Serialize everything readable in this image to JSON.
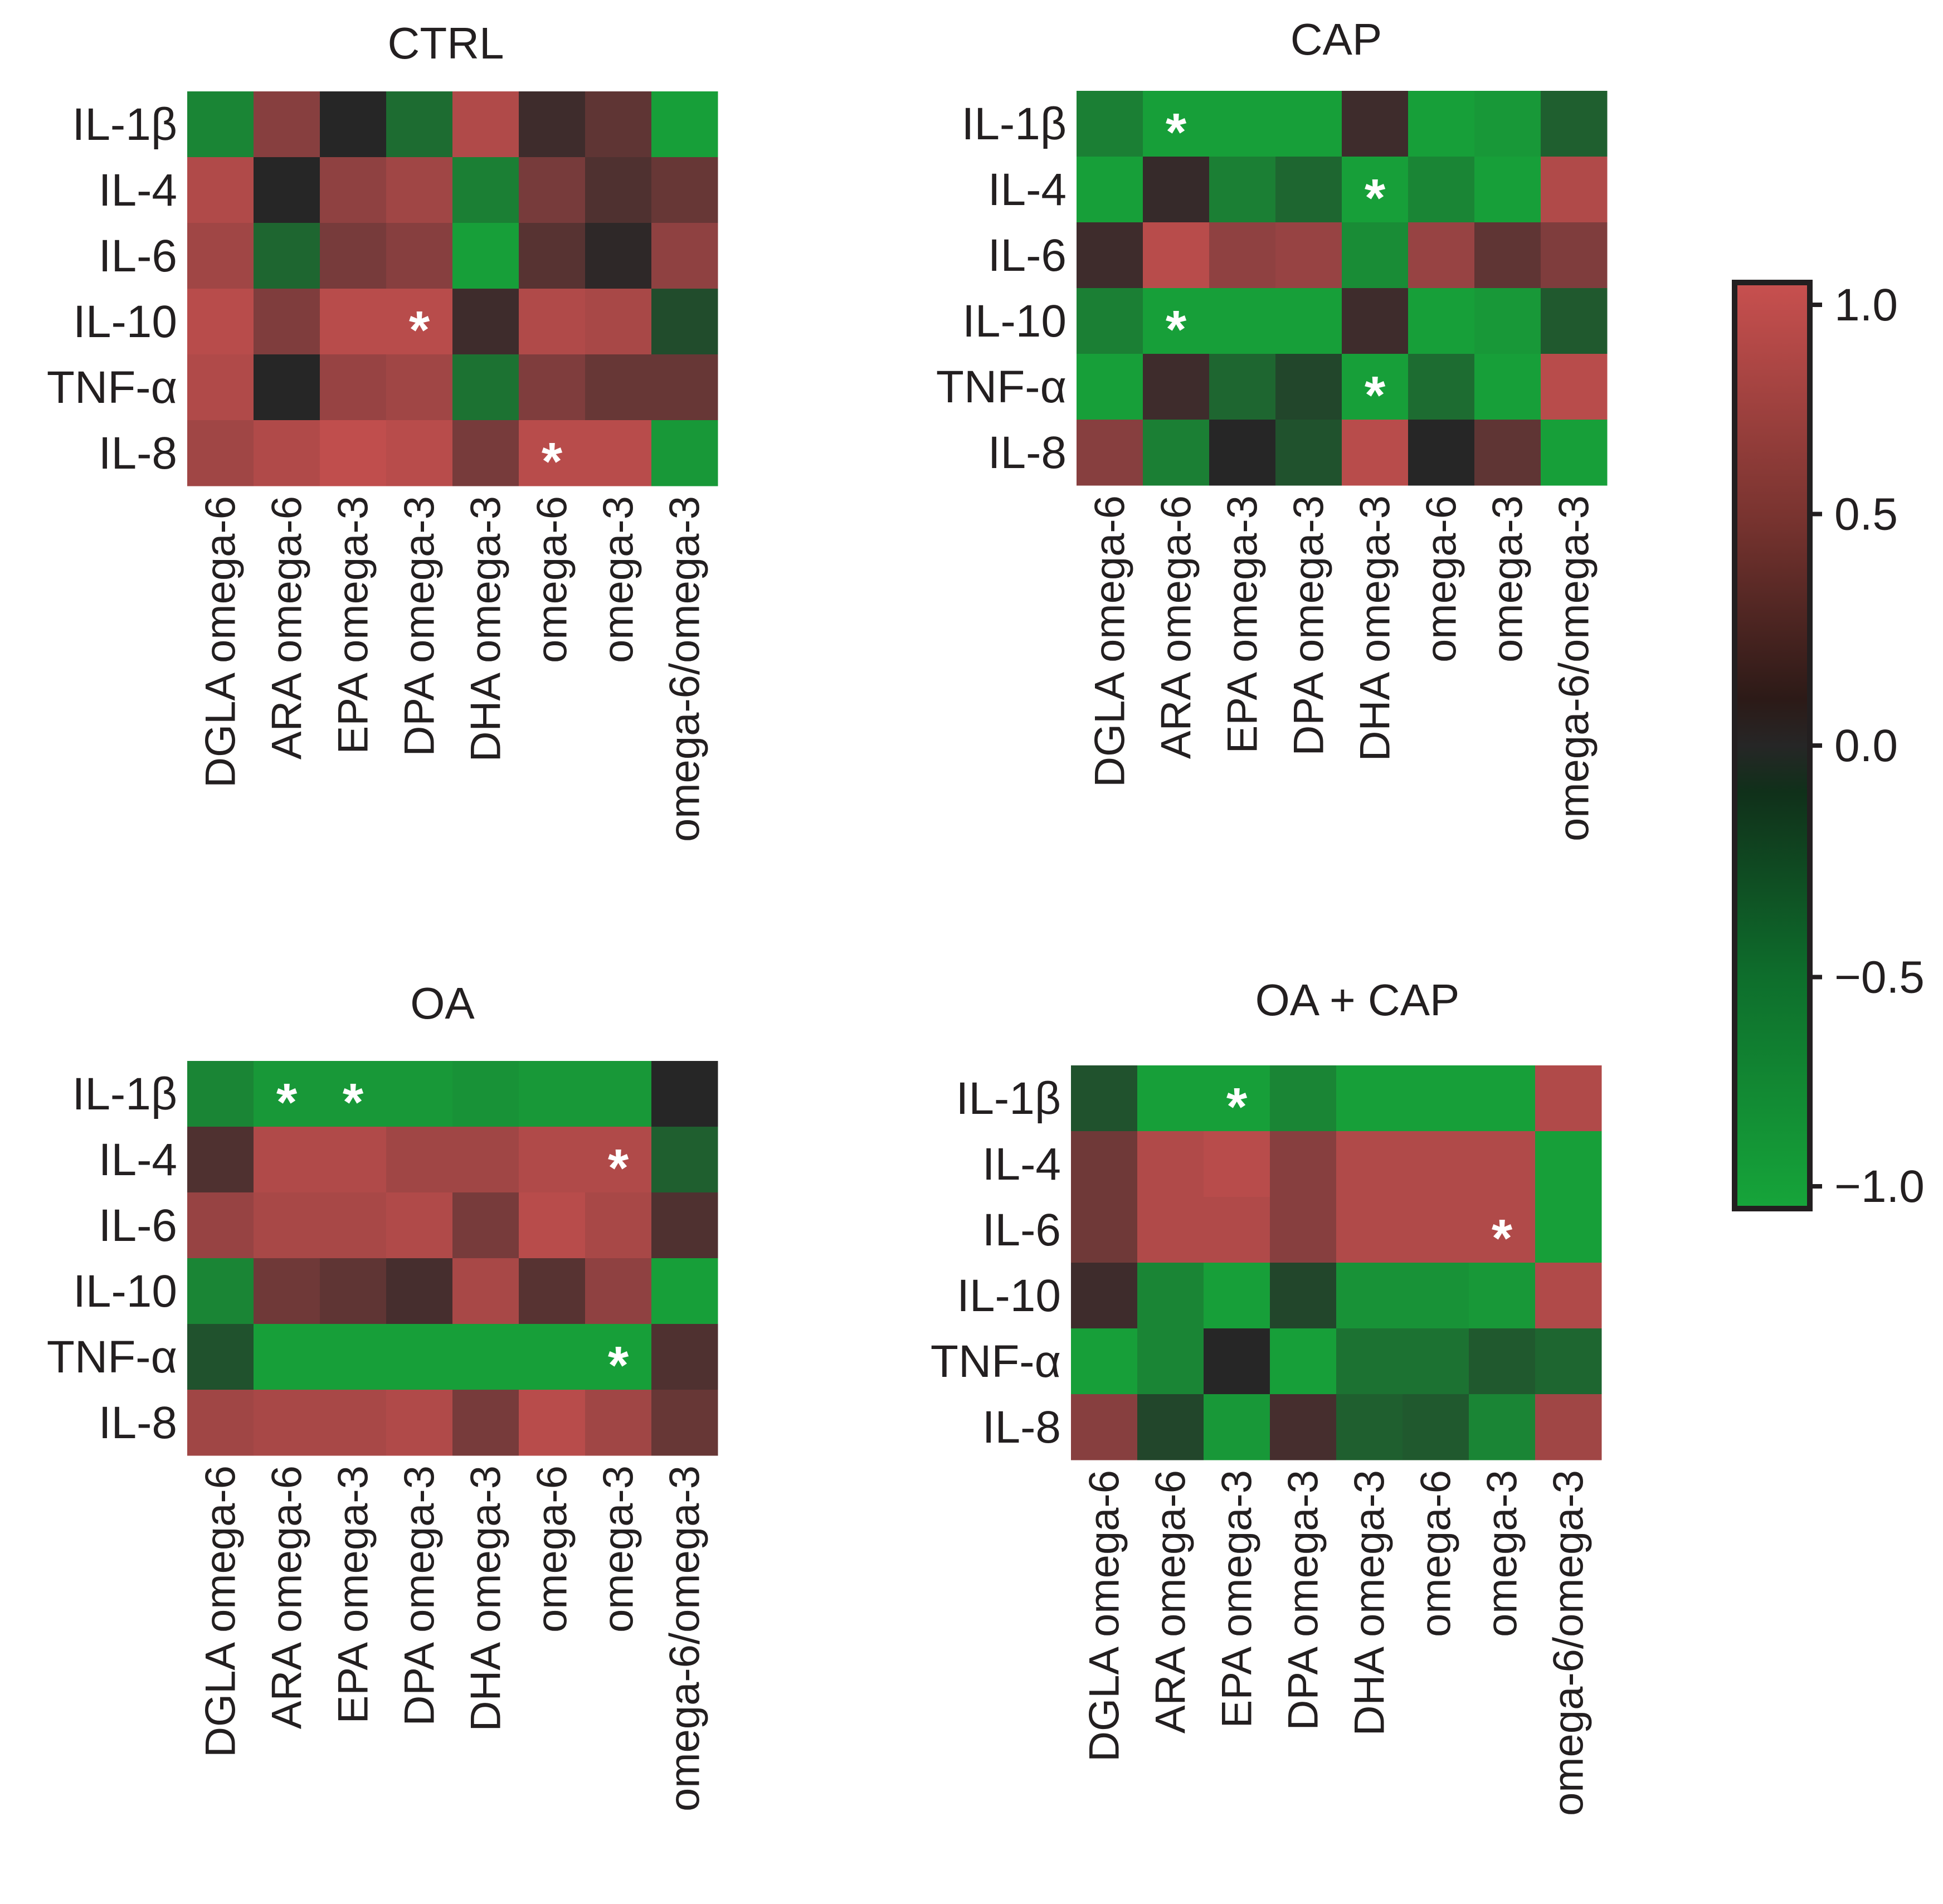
{
  "chart_data": {
    "type": "heatmap",
    "row_labels": [
      "IL-1β",
      "IL-4",
      "IL-6",
      "IL-10",
      "TNF-α",
      "IL-8"
    ],
    "column_labels": [
      "DGLA omega-6",
      "ARA omega-6",
      "EPA omega-3",
      "DPA omega-3",
      "DHA omega-3",
      "omega-6",
      "omega-3",
      "omega-6/omega-3"
    ],
    "colors": {
      "positive": "#c8504f",
      "zero": "#262626",
      "negative": "#16a53a",
      "star": "#ffffff",
      "text": "#231f20"
    },
    "colorbar": {
      "range": [
        -1.0,
        1.0
      ],
      "ticks": [
        1.0,
        0.5,
        0.0,
        -0.5,
        -1.0
      ],
      "tick_labels": [
        "1.0",
        "0.5",
        "0.0",
        "−0.5",
        "−1.0"
      ]
    },
    "panels": [
      {
        "title": "CTRL",
        "values": [
          [
            -0.75,
            0.6,
            0.0,
            -0.55,
            0.85,
            0.15,
            0.35,
            -0.95
          ],
          [
            0.85,
            0.0,
            0.65,
            0.75,
            -0.7,
            0.5,
            0.25,
            0.4
          ],
          [
            0.75,
            -0.5,
            0.5,
            0.6,
            -0.95,
            0.3,
            0.05,
            0.65
          ],
          [
            0.9,
            0.55,
            0.9,
            0.9,
            0.15,
            0.85,
            0.8,
            -0.3
          ],
          [
            0.85,
            0.0,
            0.7,
            0.75,
            -0.6,
            0.55,
            0.4,
            0.4
          ],
          [
            0.75,
            0.85,
            0.95,
            0.9,
            0.5,
            0.9,
            0.9,
            -0.9
          ]
        ],
        "stars": [
          {
            "row": 3,
            "col": 3
          },
          {
            "row": 5,
            "col": 5
          }
        ]
      },
      {
        "title": "CAP",
        "values": [
          [
            -0.7,
            -0.95,
            -0.95,
            -0.95,
            0.15,
            -0.95,
            -0.9,
            -0.45
          ],
          [
            -0.95,
            0.1,
            -0.7,
            -0.5,
            -0.95,
            -0.75,
            -0.95,
            0.85
          ],
          [
            0.15,
            0.9,
            0.65,
            0.7,
            -0.8,
            0.7,
            0.35,
            0.55
          ],
          [
            -0.7,
            -0.95,
            -0.95,
            -0.95,
            0.15,
            -0.95,
            -0.9,
            -0.4
          ],
          [
            -0.95,
            0.15,
            -0.5,
            -0.25,
            -0.95,
            -0.55,
            -0.95,
            0.9
          ],
          [
            0.6,
            -0.7,
            0.0,
            -0.35,
            0.9,
            0.0,
            0.35,
            -0.95
          ]
        ],
        "stars": [
          {
            "row": 0,
            "col": 1
          },
          {
            "row": 1,
            "col": 4
          },
          {
            "row": 3,
            "col": 1
          },
          {
            "row": 4,
            "col": 4
          }
        ]
      },
      {
        "title": "OA",
        "values": [
          [
            -0.75,
            -0.9,
            -0.9,
            -0.9,
            -0.85,
            -0.9,
            -0.9,
            0.0
          ],
          [
            0.25,
            0.85,
            0.85,
            0.75,
            0.75,
            0.85,
            0.85,
            -0.45
          ],
          [
            0.7,
            0.8,
            0.8,
            0.85,
            0.5,
            0.9,
            0.8,
            0.25
          ],
          [
            -0.75,
            0.45,
            0.35,
            0.2,
            0.8,
            0.3,
            0.65,
            -0.95
          ],
          [
            -0.35,
            -0.95,
            -0.95,
            -0.95,
            -0.95,
            -0.95,
            -0.95,
            0.25
          ],
          [
            0.75,
            0.8,
            0.8,
            0.85,
            0.5,
            0.9,
            0.75,
            0.4
          ]
        ],
        "stars": [
          {
            "row": 0,
            "col": 1
          },
          {
            "row": 0,
            "col": 2
          },
          {
            "row": 1,
            "col": 6
          },
          {
            "row": 4,
            "col": 6
          }
        ]
      },
      {
        "title": "OA + CAP",
        "values": [
          [
            -0.35,
            -0.95,
            -0.95,
            -0.75,
            -0.95,
            -0.95,
            -0.95,
            0.85
          ],
          [
            0.45,
            0.85,
            0.9,
            0.6,
            0.85,
            0.85,
            0.85,
            -0.95
          ],
          [
            0.45,
            0.85,
            0.85,
            0.6,
            0.85,
            0.85,
            0.85,
            -0.95
          ],
          [
            0.15,
            -0.75,
            -0.95,
            -0.25,
            -0.85,
            -0.85,
            -0.9,
            0.85
          ],
          [
            -0.95,
            -0.75,
            0.0,
            -0.95,
            -0.6,
            -0.6,
            -0.4,
            -0.5
          ],
          [
            0.6,
            -0.25,
            -0.9,
            0.2,
            -0.45,
            -0.4,
            -0.75,
            0.75
          ]
        ],
        "stars": [
          {
            "row": 0,
            "col": 2
          },
          {
            "row": 2,
            "col": 6
          }
        ]
      }
    ]
  }
}
